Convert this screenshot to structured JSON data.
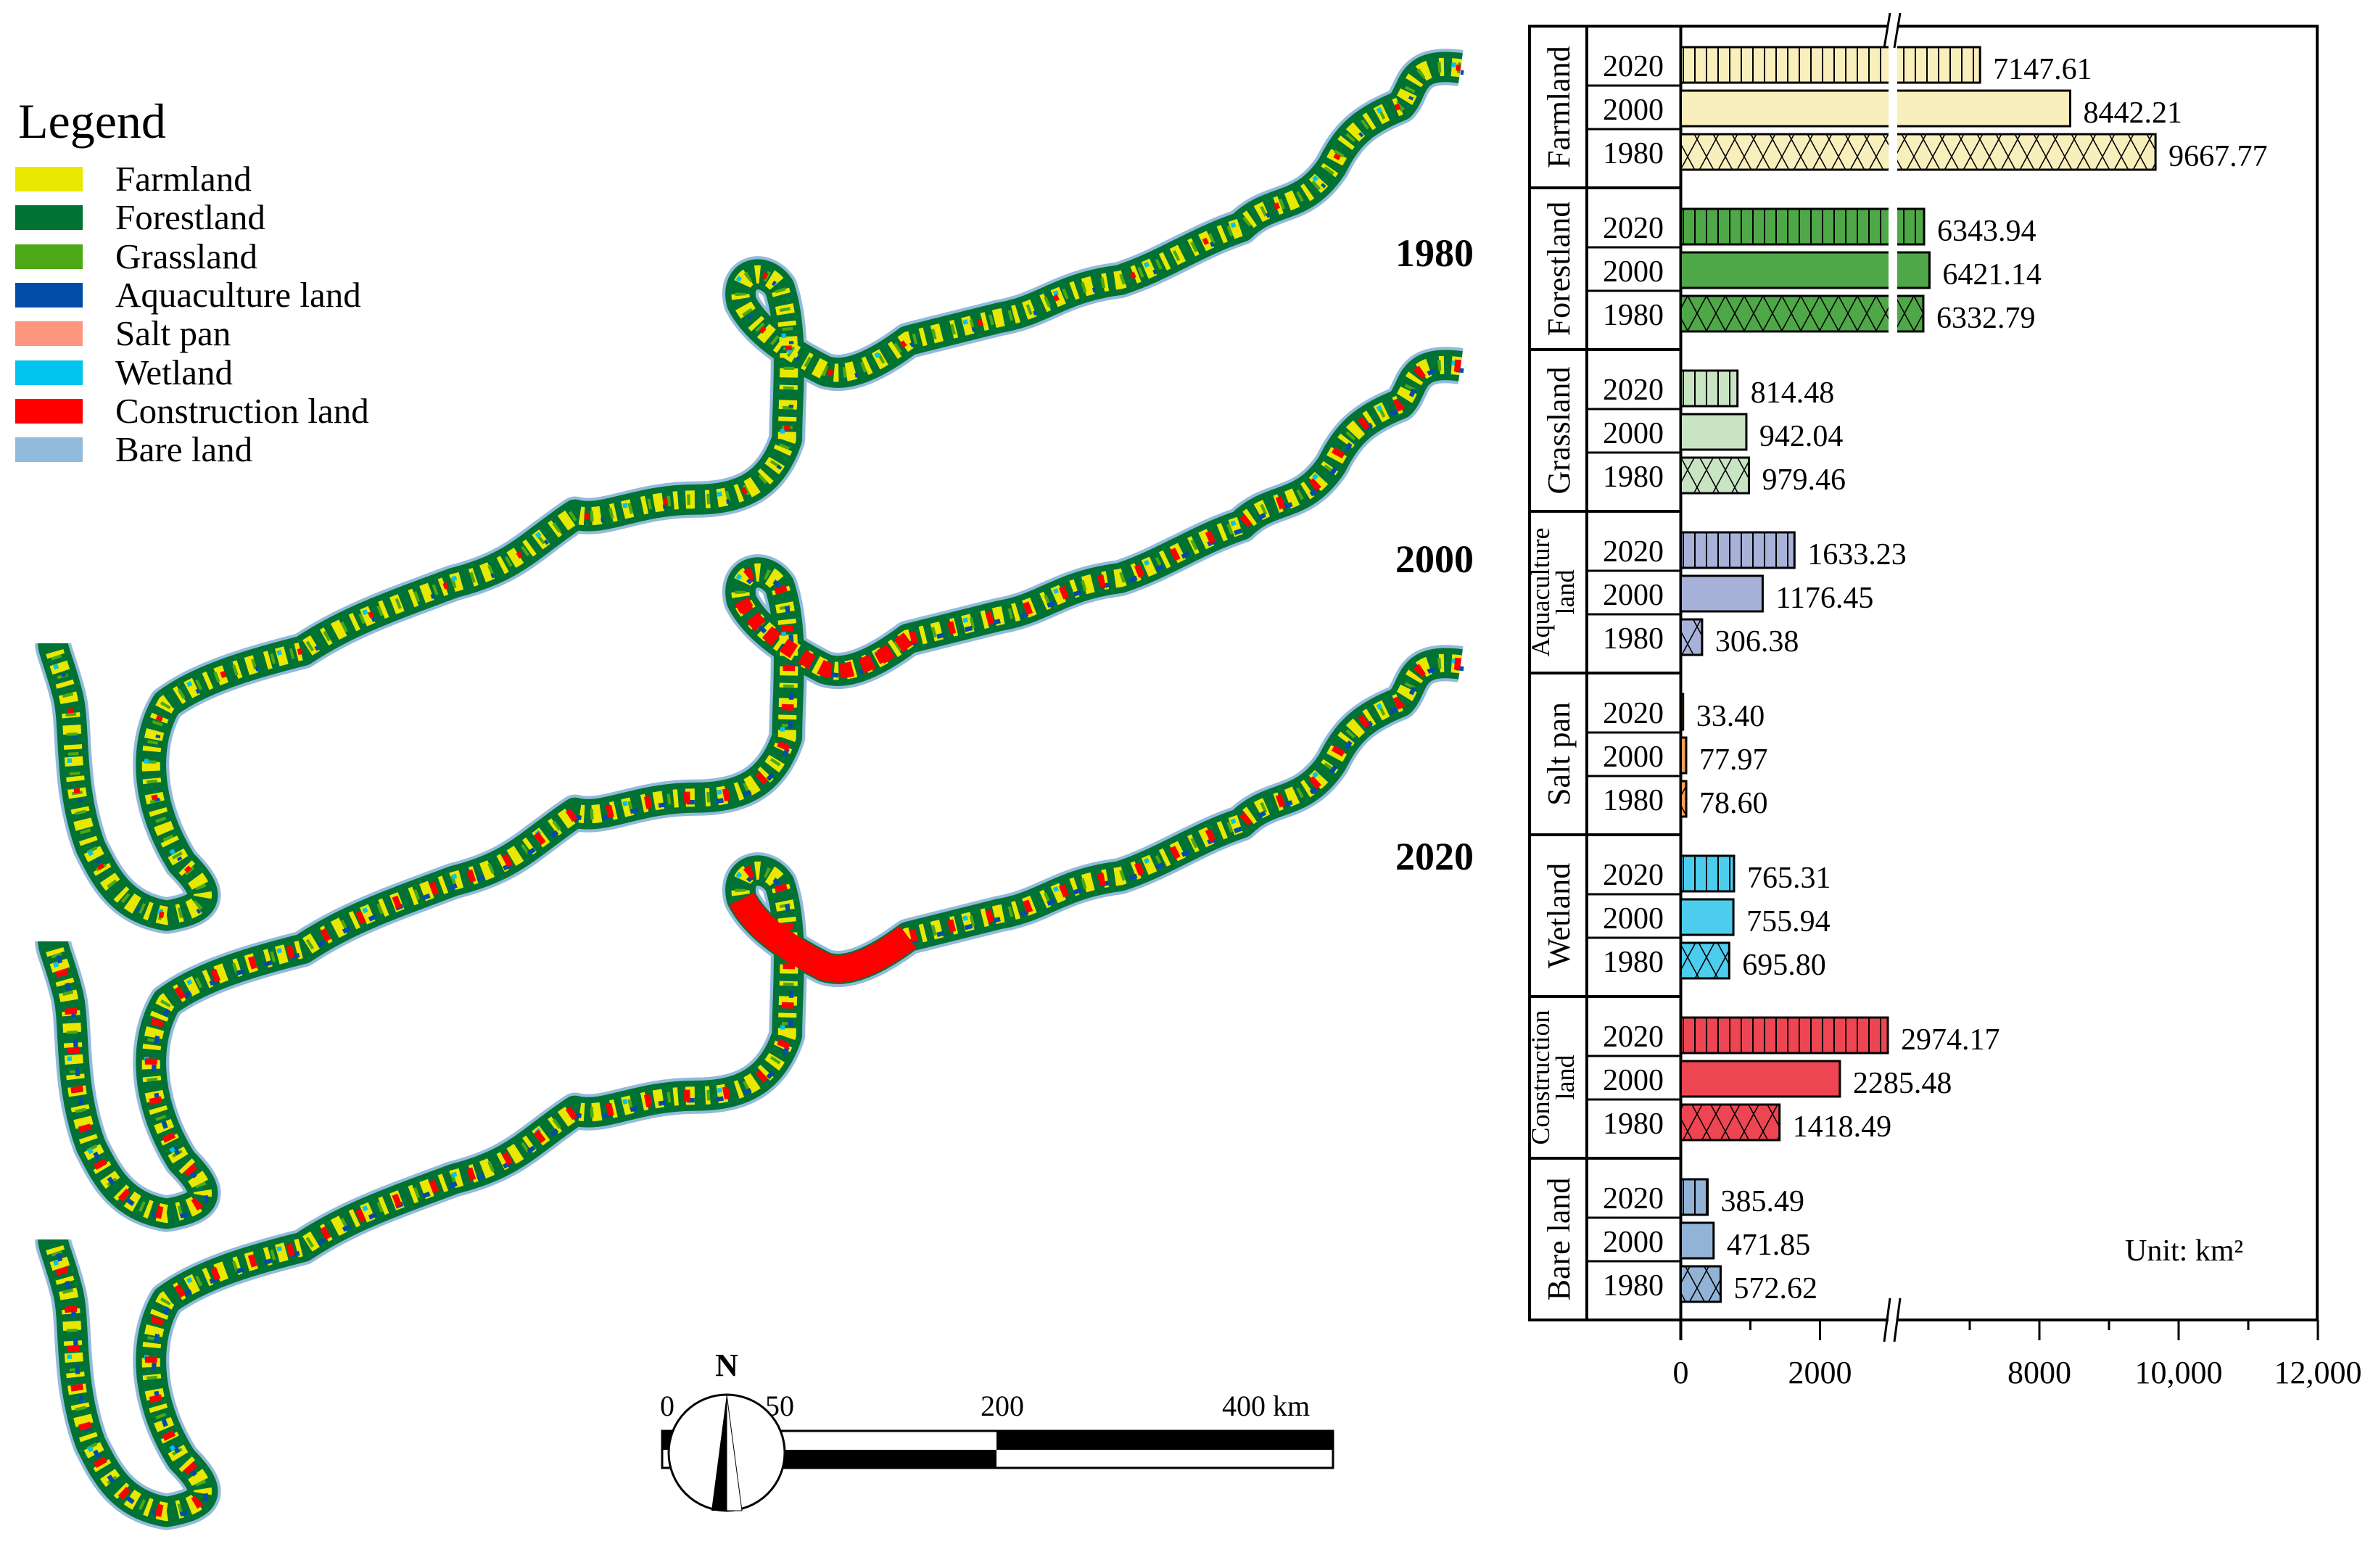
{
  "legend": {
    "title": "Legend",
    "items": [
      {
        "label": "Farmland",
        "color": "#e8e800"
      },
      {
        "label": "Forestland",
        "color": "#007233"
      },
      {
        "label": "Grassland",
        "color": "#4ca814"
      },
      {
        "label": "Aquaculture land",
        "color": "#004da8"
      },
      {
        "label": "Salt pan",
        "color": "#ff9680"
      },
      {
        "label": "Wetland",
        "color": "#00c3ef"
      },
      {
        "label": "Construction land",
        "color": "#ff0000"
      },
      {
        "label": "Bare land",
        "color": "#92bbdb"
      }
    ]
  },
  "maps": {
    "years": [
      "1980",
      "2000",
      "2020"
    ]
  },
  "scale_bar": {
    "labels": [
      "0",
      "50",
      "200",
      "400 km"
    ]
  },
  "north_arrow": {
    "label": "N"
  },
  "chart_data": {
    "type": "bar",
    "orientation": "horizontal",
    "unit_label": "Unit: km²",
    "years": [
      "2020",
      "2000",
      "1980"
    ],
    "patterns": {
      "2020": "vertical-hatch",
      "2000": "solid",
      "1980": "cross-hatch"
    },
    "axis": {
      "ticks": [
        "0",
        "2000",
        "8000",
        "10,000",
        "12,000"
      ],
      "tick_values": [
        0,
        2000,
        8000,
        10000,
        12000
      ],
      "minor_ticks": [
        1000,
        7000,
        9000,
        11000
      ],
      "xlim": [
        0,
        12000
      ],
      "break": [
        3050,
        5900
      ]
    },
    "categories": [
      {
        "name": "Farmland",
        "lines": [
          "Farmland"
        ],
        "color": "#f8efbd",
        "values": [
          7147.61,
          8442.21,
          9667.77
        ],
        "labels": [
          "7147.61",
          "8442.21",
          "9667.77"
        ]
      },
      {
        "name": "Forestland",
        "lines": [
          "Forestland"
        ],
        "color": "#4fa847",
        "values": [
          6343.94,
          6421.14,
          6332.79
        ],
        "labels": [
          "6343.94",
          "6421.14",
          "6332.79"
        ]
      },
      {
        "name": "Grassland",
        "lines": [
          "Grassland"
        ],
        "color": "#c8e4c3",
        "values": [
          814.48,
          942.04,
          979.46
        ],
        "labels": [
          "814.48",
          "942.04",
          "979.46"
        ]
      },
      {
        "name": "Aquaculture land",
        "lines": [
          "Aquaculture",
          "land"
        ],
        "color": "#a8b2d9",
        "values": [
          1633.23,
          1176.45,
          306.38
        ],
        "labels": [
          "1633.23",
          "1176.45",
          "306.38"
        ]
      },
      {
        "name": "Salt pan",
        "lines": [
          "Salt pan"
        ],
        "color": "#f4a259",
        "values": [
          33.4,
          77.97,
          78.6
        ],
        "labels": [
          "33.40",
          "77.97",
          "78.60"
        ]
      },
      {
        "name": "Wetland",
        "lines": [
          "Wetland"
        ],
        "color": "#4dcdee",
        "values": [
          765.31,
          755.94,
          695.8
        ],
        "labels": [
          "765.31",
          "755.94",
          "695.80"
        ]
      },
      {
        "name": "Construction land",
        "lines": [
          "Construction",
          "land"
        ],
        "color": "#ee4553",
        "values": [
          2974.17,
          2285.48,
          1418.49
        ],
        "labels": [
          "2974.17",
          "2285.48",
          "1418.49"
        ]
      },
      {
        "name": "Bare land",
        "lines": [
          "Bare land"
        ],
        "color": "#91b4d6",
        "values": [
          385.49,
          471.85,
          572.62
        ],
        "labels": [
          "385.49",
          "471.85",
          "572.62"
        ]
      }
    ]
  }
}
